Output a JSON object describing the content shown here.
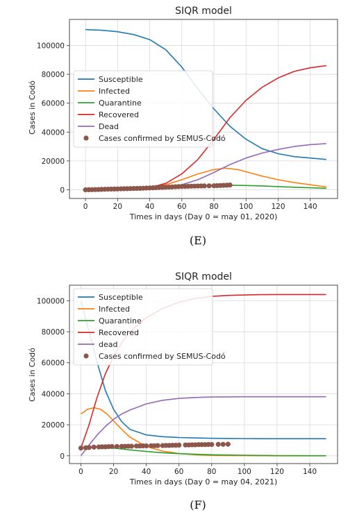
{
  "chart_data": [
    {
      "type": "line",
      "title": "SIQR model",
      "xlabel": "Times in days (Day 0 = may 01, 2020)",
      "ylabel": "Cases in Codó",
      "caption": "(E)",
      "xlim": [
        -10,
        157
      ],
      "ylim": [
        -6000,
        118000
      ],
      "xticks": [
        0,
        20,
        40,
        60,
        80,
        100,
        120,
        140
      ],
      "yticks": [
        0,
        20000,
        40000,
        60000,
        80000,
        100000
      ],
      "grid": true,
      "legend_position": "upper-left",
      "series": [
        {
          "name": "Susceptible",
          "color": "#1f77b4",
          "kind": "line",
          "x": [
            0,
            10,
            20,
            30,
            40,
            50,
            60,
            70,
            80,
            90,
            100,
            110,
            120,
            130,
            140,
            150
          ],
          "y": [
            111000,
            110500,
            109500,
            107500,
            104000,
            97000,
            85000,
            70000,
            56000,
            44000,
            35000,
            28500,
            25000,
            23000,
            22000,
            21000
          ]
        },
        {
          "name": "Infected",
          "color": "#ff7f0e",
          "kind": "line",
          "x": [
            0,
            10,
            20,
            30,
            40,
            50,
            60,
            70,
            80,
            87,
            95,
            100,
            110,
            120,
            130,
            140,
            150
          ],
          "y": [
            0,
            200,
            500,
            900,
            1800,
            3500,
            7000,
            11000,
            14000,
            15000,
            14000,
            12500,
            9500,
            7000,
            5000,
            3500,
            2000
          ]
        },
        {
          "name": "Quarantine",
          "color": "#2ca02c",
          "kind": "line",
          "x": [
            0,
            10,
            20,
            30,
            40,
            50,
            60,
            70,
            80,
            90,
            100,
            110,
            120,
            130,
            140,
            150
          ],
          "y": [
            0,
            200,
            500,
            800,
            1300,
            1800,
            2300,
            2800,
            3100,
            3200,
            3000,
            2700,
            2200,
            1800,
            1400,
            1000
          ]
        },
        {
          "name": "Recovered",
          "color": "#d62728",
          "kind": "line",
          "x": [
            0,
            10,
            20,
            30,
            40,
            50,
            60,
            70,
            80,
            90,
            100,
            110,
            120,
            130,
            140,
            150
          ],
          "y": [
            0,
            50,
            200,
            500,
            1500,
            4500,
            11000,
            21000,
            35000,
            50000,
            62000,
            71000,
            77500,
            82000,
            84500,
            86000
          ]
        },
        {
          "name": "Dead",
          "color": "#9467bd",
          "kind": "line",
          "x": [
            0,
            10,
            20,
            30,
            40,
            50,
            60,
            70,
            80,
            90,
            100,
            110,
            120,
            130,
            140,
            150
          ],
          "y": [
            0,
            20,
            80,
            200,
            550,
            1500,
            3500,
            7000,
            12000,
            17500,
            22000,
            25500,
            28000,
            30000,
            31300,
            32000
          ]
        },
        {
          "name": "Cases confirmed by SEMUS-Codó",
          "color": "#8c564b",
          "kind": "scatter",
          "x": [
            0,
            2,
            4,
            6,
            8,
            10,
            12,
            14,
            16,
            18,
            20,
            22,
            24,
            26,
            28,
            30,
            32,
            34,
            36,
            38,
            40,
            42,
            44,
            46,
            48,
            50,
            52,
            54,
            56,
            58,
            60,
            62,
            64,
            66,
            68,
            70,
            72,
            74,
            77,
            80,
            82,
            84,
            86,
            88,
            90
          ],
          "y": [
            0,
            50,
            100,
            150,
            200,
            300,
            400,
            450,
            500,
            550,
            600,
            700,
            750,
            800,
            850,
            900,
            950,
            1000,
            1100,
            1200,
            1300,
            1400,
            1500,
            1600,
            1700,
            1800,
            1900,
            2000,
            2100,
            2200,
            2300,
            2350,
            2400,
            2500,
            2550,
            2600,
            2650,
            2700,
            2750,
            2800,
            2900,
            3000,
            3100,
            3200,
            3300
          ]
        }
      ]
    },
    {
      "type": "line",
      "title": "SIQR model",
      "xlabel": "Times in days (Day 0 = may 04, 2021)",
      "ylabel": "Cases in Codó",
      "caption": "(F)",
      "xlim": [
        -7,
        157
      ],
      "ylim": [
        -5000,
        110000
      ],
      "xticks": [
        0,
        20,
        40,
        60,
        80,
        100,
        120,
        140
      ],
      "yticks": [
        0,
        20000,
        40000,
        60000,
        80000,
        100000
      ],
      "grid": true,
      "legend_position": "upper-left",
      "series": [
        {
          "name": "Susceptible",
          "color": "#1f77b4",
          "kind": "line",
          "x": [
            0,
            5,
            10,
            15,
            20,
            25,
            30,
            40,
            50,
            60,
            70,
            80,
            90,
            100,
            110,
            120,
            130,
            140,
            150
          ],
          "y": [
            100000,
            80000,
            60000,
            42000,
            30000,
            22000,
            17000,
            13500,
            12300,
            11800,
            11500,
            11300,
            11200,
            11100,
            11000,
            11000,
            11000,
            11000,
            11000
          ]
        },
        {
          "name": "Infected",
          "color": "#ff7f0e",
          "kind": "line",
          "x": [
            0,
            4,
            8,
            12,
            16,
            20,
            25,
            30,
            40,
            50,
            60,
            70,
            80,
            90,
            100,
            120,
            150
          ],
          "y": [
            27000,
            30000,
            31000,
            30000,
            27000,
            22500,
            17000,
            12000,
            6000,
            3000,
            1500,
            700,
            300,
            150,
            80,
            30,
            0
          ]
        },
        {
          "name": "Quarantine",
          "color": "#2ca02c",
          "kind": "line",
          "x": [
            0,
            5,
            10,
            15,
            20,
            25,
            30,
            40,
            50,
            60,
            70,
            80,
            90,
            100,
            110,
            120,
            130,
            140,
            150
          ],
          "y": [
            5000,
            5500,
            5700,
            5500,
            5000,
            4400,
            3800,
            2800,
            2000,
            1400,
            1000,
            700,
            500,
            350,
            250,
            150,
            100,
            60,
            40
          ]
        },
        {
          "name": "Recovered",
          "color": "#d62728",
          "kind": "line",
          "x": [
            0,
            5,
            10,
            15,
            20,
            25,
            30,
            40,
            50,
            60,
            70,
            80,
            90,
            100,
            110,
            120,
            130,
            140,
            150
          ],
          "y": [
            5000,
            20000,
            38000,
            53000,
            64000,
            73000,
            80000,
            89000,
            95000,
            99000,
            101500,
            102800,
            103400,
            103700,
            103900,
            104000,
            104000,
            104000,
            104000
          ]
        },
        {
          "name": "dead",
          "color": "#9467bd",
          "kind": "line",
          "x": [
            0,
            5,
            10,
            15,
            20,
            25,
            30,
            40,
            50,
            60,
            70,
            80,
            90,
            100,
            110,
            120,
            130,
            140,
            150
          ],
          "y": [
            0,
            7000,
            13500,
            19000,
            23500,
            27000,
            29500,
            33500,
            35800,
            37000,
            37600,
            37900,
            38000,
            38100,
            38100,
            38100,
            38100,
            38100,
            38100
          ]
        },
        {
          "name": "Cases confirmed by SEMUS-Codó",
          "color": "#8c564b",
          "kind": "scatter",
          "x": [
            0,
            3,
            5,
            8,
            11,
            13,
            15,
            17,
            19,
            22,
            25,
            27,
            29,
            31,
            34,
            36,
            38,
            40,
            43,
            45,
            47,
            50,
            52,
            54,
            56,
            58,
            60,
            64,
            66,
            68,
            70,
            72,
            74,
            76,
            78,
            80,
            84,
            87,
            90
          ],
          "y": [
            5000,
            5200,
            5400,
            5600,
            5700,
            5800,
            5800,
            5900,
            6000,
            6000,
            6100,
            6100,
            6200,
            6200,
            6300,
            6300,
            6400,
            6400,
            6500,
            6500,
            6600,
            6600,
            6700,
            6700,
            6800,
            6800,
            6900,
            7000,
            7000,
            7100,
            7100,
            7200,
            7200,
            7200,
            7300,
            7300,
            7400,
            7400,
            7500
          ]
        }
      ]
    }
  ]
}
